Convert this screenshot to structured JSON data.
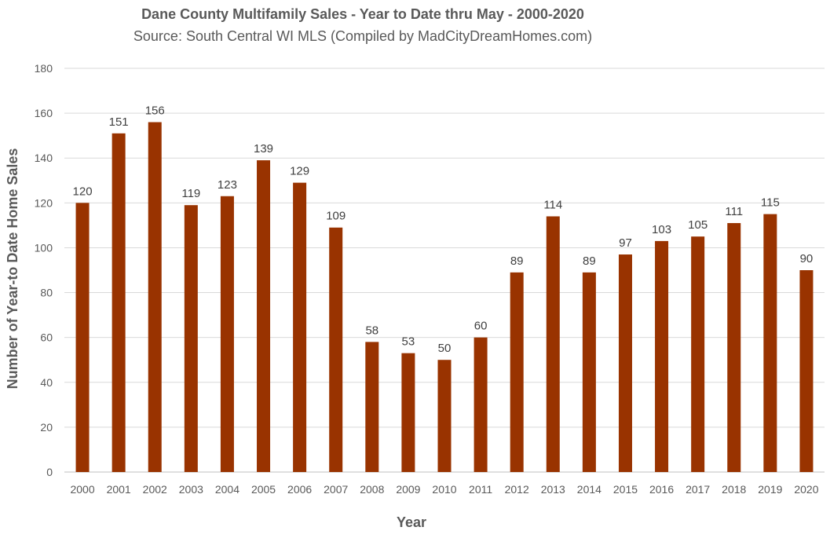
{
  "chart_data": {
    "type": "bar",
    "title": "Dane County Multifamily Sales - Year to Date thru May - 2000-2020",
    "subtitle": "Source: South Central WI MLS (Compiled by MadCityDreamHomes.com)",
    "xlabel": "Year",
    "ylabel": "Number of Year-to Date Home Sales",
    "ylim": [
      0,
      180
    ],
    "yticks": [
      0,
      20,
      40,
      60,
      80,
      100,
      120,
      140,
      160,
      180
    ],
    "grid": true,
    "bar_color": "#993300",
    "categories": [
      "2000",
      "2001",
      "2002",
      "2003",
      "2004",
      "2005",
      "2006",
      "2007",
      "2008",
      "2009",
      "2010",
      "2011",
      "2012",
      "2013",
      "2014",
      "2015",
      "2016",
      "2017",
      "2018",
      "2019",
      "2020"
    ],
    "values": [
      120,
      151,
      156,
      119,
      123,
      139,
      129,
      109,
      58,
      53,
      50,
      60,
      89,
      114,
      89,
      97,
      103,
      105,
      111,
      115,
      90
    ]
  }
}
